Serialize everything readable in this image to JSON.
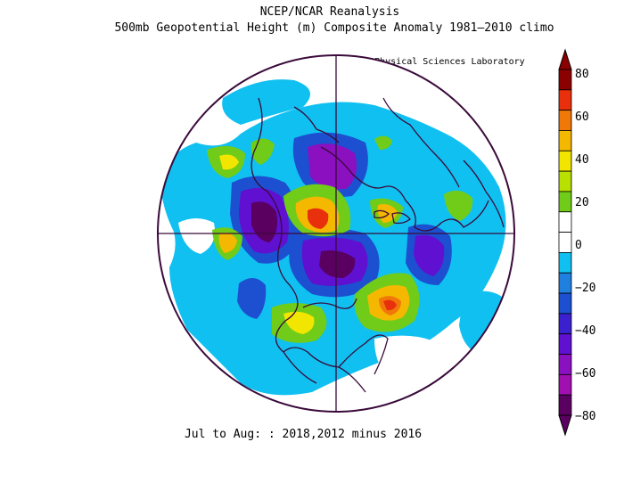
{
  "header": {
    "title": "NCEP/NCAR Reanalysis",
    "subtitle": "500mb Geopotential Height (m) Composite Anomaly 1981–2010 climo",
    "credit": "NOAA Physical Sciences Laboratory"
  },
  "footer": {
    "caption": "Jul to Aug: : 2018,2012 minus 2016"
  },
  "colorbar": {
    "ticks": [
      "80",
      "60",
      "40",
      "20",
      "0",
      "−20",
      "−40",
      "−60",
      "−80"
    ],
    "colors": [
      "#8b0000",
      "#e8300c",
      "#f07808",
      "#f5b800",
      "#f2e600",
      "#b8e000",
      "#70cc18",
      "#ffffff",
      "#ffffff",
      "#10c0f0",
      "#2080e0",
      "#1c50d0",
      "#3b20d0",
      "#6010d0",
      "#8a10c0",
      "#a010b0",
      "#5a0060"
    ]
  },
  "legend_colors": {
    "positive_high": "#e8300c",
    "positive_mid": "#f5b800",
    "positive_low": "#70cc18",
    "negative_low": "#10c0f0",
    "negative_mid": "#3b20d0",
    "negative_high": "#5a0060",
    "coastline": "#3a0a3a"
  }
}
